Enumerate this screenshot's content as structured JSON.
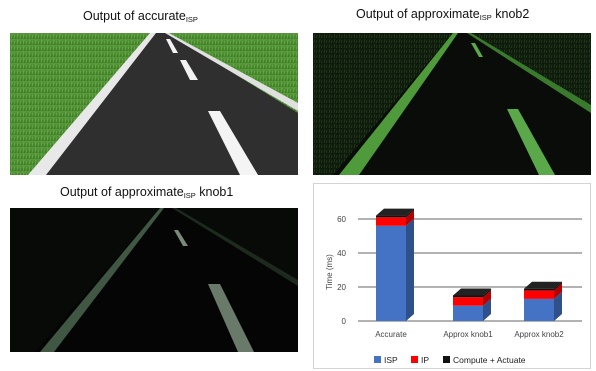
{
  "panels": {
    "top_left": {
      "caption_prefix": "Output of accurate",
      "caption_sub": "ISP",
      "caption_suffix": ""
    },
    "top_right": {
      "caption_prefix": "Output of approximate",
      "caption_sub": "ISP",
      "caption_suffix": " knob2"
    },
    "bottom_left": {
      "caption_prefix": "Output of approximate",
      "caption_sub": "ISP",
      "caption_suffix": " knob1"
    }
  },
  "colors": {
    "isp": "#4472c4",
    "ip": "#ff0000",
    "compute": "#111111",
    "grass": "#3f8a2a",
    "road": "#2e2e2e"
  },
  "chart_data": {
    "type": "bar",
    "stacked": true,
    "style": "3d",
    "categories": [
      "Accurate",
      "Approx knob1",
      "Approx knob2"
    ],
    "series": [
      {
        "name": "ISP",
        "values": [
          56,
          9,
          13
        ]
      },
      {
        "name": "IP",
        "values": [
          5,
          5,
          5
        ]
      },
      {
        "name": "Compute + Actuate",
        "values": [
          1,
          1,
          1
        ]
      }
    ],
    "ylabel": "Time (ms)",
    "xlabel": "",
    "yticks": [
      0,
      20,
      40,
      60
    ],
    "ylim": [
      0,
      70
    ],
    "grid": true,
    "legend_position": "bottom"
  }
}
